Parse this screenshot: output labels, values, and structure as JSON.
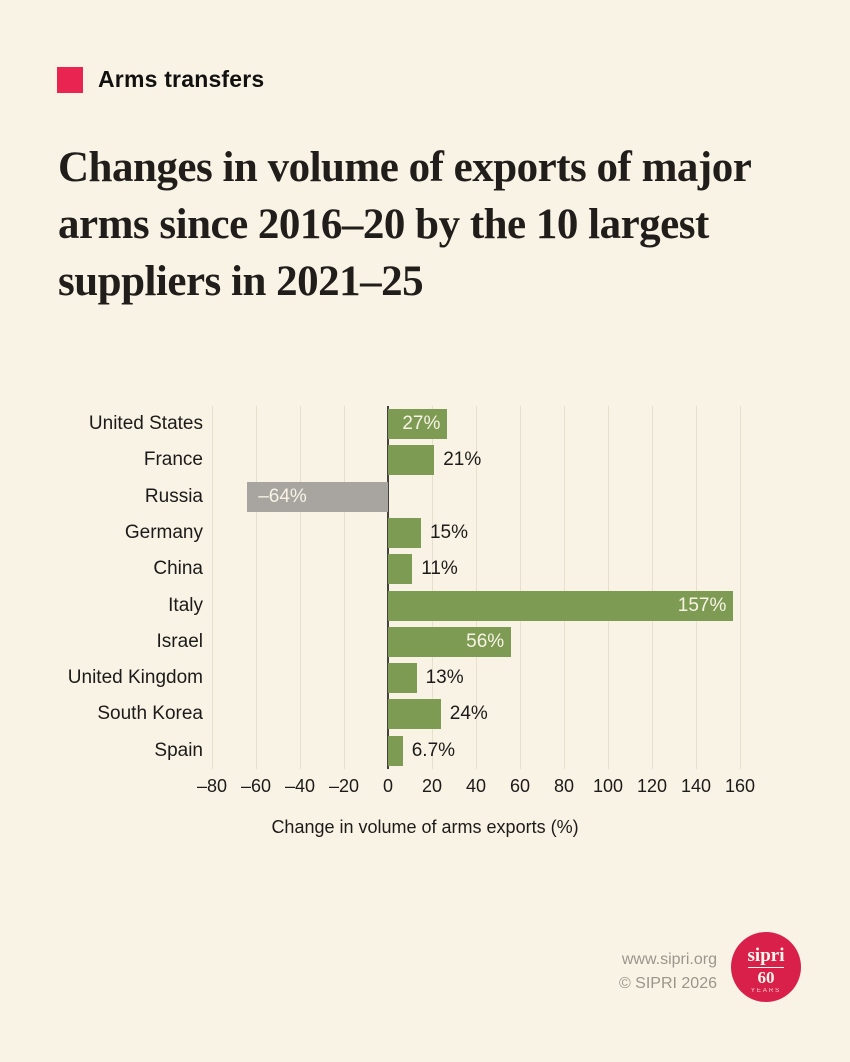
{
  "header": {
    "category": "Arms transfers",
    "title": "Changes in volume of exports of major arms since 2016–20 by the 10 largest suppliers in 2021–25"
  },
  "chart_data": {
    "type": "bar",
    "orientation": "horizontal",
    "title": "Changes in volume of exports of major arms since 2016–20 by the 10 largest suppliers in 2021–25",
    "categories": [
      "United States",
      "France",
      "Russia",
      "Germany",
      "China",
      "Italy",
      "Israel",
      "United Kingdom",
      "South Korea",
      "Spain"
    ],
    "values": [
      27,
      21,
      -64,
      15,
      11,
      157,
      56,
      13,
      24,
      6.7
    ],
    "value_labels": [
      "27%",
      "21%",
      "–64%",
      "15%",
      "11%",
      "157%",
      "56%",
      "13%",
      "24%",
      "6.7%"
    ],
    "label_inside": [
      true,
      false,
      true,
      false,
      false,
      true,
      true,
      false,
      false,
      false
    ],
    "x_ticks": [
      -80,
      -60,
      -40,
      -20,
      0,
      20,
      40,
      60,
      80,
      100,
      120,
      140,
      160
    ],
    "x_tick_labels": [
      "–80",
      "–60",
      "–40",
      "–20",
      "0",
      "20",
      "40",
      "60",
      "80",
      "100",
      "120",
      "140",
      "160"
    ],
    "xlim": [
      -80,
      160
    ],
    "xlabel": "Change in volume of arms exports (%)",
    "grid": true,
    "colors": {
      "positive": "#7d9b53",
      "negative": "#a8a5a0",
      "zero_line": "#45413d",
      "label_inside": "#f9f3e6",
      "label_outside": "#1d1b19"
    }
  },
  "footer": {
    "website": "www.sipri.org",
    "copyright": "© SIPRI 2026",
    "badge": {
      "top": "sipri",
      "middle": "60",
      "bottom": "YEARS"
    }
  }
}
